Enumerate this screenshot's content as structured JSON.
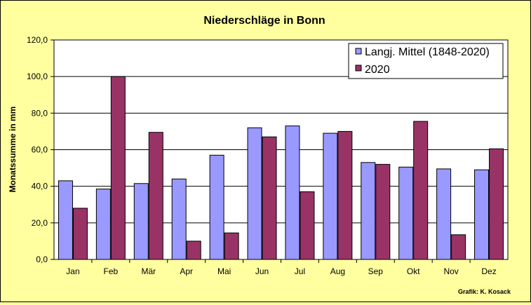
{
  "chart_data": {
    "type": "bar",
    "title": "Niederschläge in Bonn",
    "xlabel": "",
    "ylabel": "Monatssumme in mm",
    "ylim": [
      0,
      120
    ],
    "yticks": [
      "0,0",
      "20,0",
      "40,0",
      "60,0",
      "80,0",
      "100,0",
      "120,0"
    ],
    "categories": [
      "Jan",
      "Feb",
      "Mär",
      "Apr",
      "Mai",
      "Jun",
      "Jul",
      "Aug",
      "Sep",
      "Okt",
      "Nov",
      "Dez"
    ],
    "series": [
      {
        "name": "Langj. Mittel (1848-2020)",
        "color": "#9999ff",
        "values": [
          43,
          38.5,
          41.5,
          44,
          57,
          72,
          73,
          69,
          53,
          50.5,
          49.5,
          49
        ]
      },
      {
        "name": "2020",
        "color": "#993366",
        "values": [
          28,
          100,
          69.5,
          10,
          14.5,
          67,
          37,
          70,
          52,
          75.5,
          13.5,
          60.5
        ]
      }
    ],
    "grid": true,
    "legend_position": "top-right",
    "plot_background": "#ffffff",
    "chart_background": "#ffffa0",
    "credit": "Grafik:  K. Kosack"
  }
}
